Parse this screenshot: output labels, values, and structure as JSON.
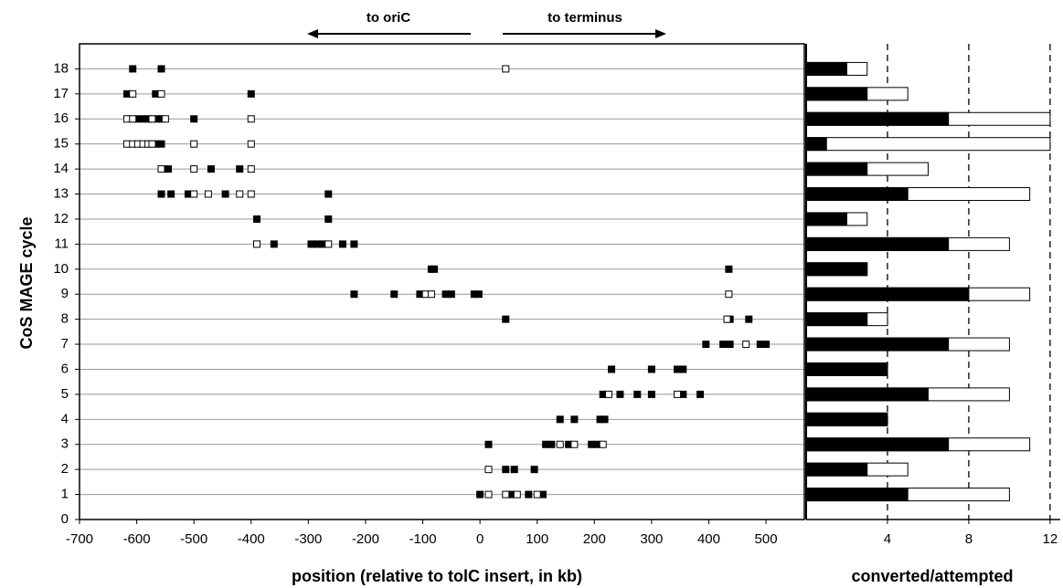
{
  "chart_data": [
    {
      "type": "scatter",
      "ylabel": "CoS MAGE cycle",
      "xlabel": "position (relative to tolC insert, in kb)",
      "annotations": [
        "to oriC",
        "to terminus"
      ],
      "xlim": [
        -700,
        567
      ],
      "xticks": [
        -700,
        -600,
        -500,
        -400,
        -300,
        -200,
        -100,
        0,
        100,
        200,
        300,
        400,
        500
      ],
      "ylim": [
        0,
        19
      ],
      "yticks": [
        0,
        1,
        2,
        3,
        4,
        5,
        6,
        7,
        8,
        9,
        10,
        11,
        12,
        13,
        14,
        15,
        16,
        17,
        18
      ],
      "grid": true,
      "series": [
        {
          "color": "#000000",
          "x": [
            -607,
            -557,
            -617,
            -567,
            -400,
            -598,
            -589,
            -580,
            -565,
            -557,
            -500,
            -565,
            -557,
            -545,
            -470,
            -420,
            -557,
            -540,
            -510,
            -445,
            -265,
            -390,
            -265,
            -360,
            -295,
            -285,
            -275,
            -240,
            -220,
            -85,
            -80,
            435,
            -220,
            -150,
            -105,
            -60,
            -50,
            -10,
            -2,
            45,
            437,
            470,
            395,
            425,
            437,
            490,
            500,
            230,
            300,
            345,
            355,
            215,
            245,
            275,
            300,
            355,
            385,
            140,
            165,
            210,
            218,
            15,
            115,
            125,
            155,
            195,
            205,
            45,
            60,
            95,
            0,
            55,
            85,
            110
          ],
          "values": [
            18,
            18,
            17,
            17,
            17,
            16,
            16,
            16,
            16,
            16,
            16,
            15,
            15,
            14,
            14,
            14,
            13,
            13,
            13,
            13,
            13,
            12,
            12,
            11,
            11,
            11,
            11,
            11,
            11,
            10,
            10,
            10,
            9,
            9,
            9,
            9,
            9,
            9,
            9,
            8,
            8,
            8,
            7,
            7,
            7,
            7,
            7,
            6,
            6,
            6,
            6,
            5,
            5,
            5,
            5,
            5,
            5,
            4,
            4,
            4,
            4,
            3,
            3,
            3,
            3,
            3,
            3,
            2,
            2,
            2,
            1,
            1,
            1,
            1
          ]
        },
        {
          "color": "#ffffff",
          "x": [
            45,
            -607,
            -557,
            -617,
            -607,
            -573,
            -550,
            -400,
            -617,
            -607,
            -598,
            -589,
            -580,
            -573,
            -500,
            -400,
            -557,
            -500,
            -400,
            -500,
            -475,
            -420,
            -400,
            -390,
            -265,
            -95,
            -85,
            435,
            432,
            465,
            225,
            345,
            140,
            165,
            215,
            15,
            15,
            45,
            65,
            100
          ],
          "values": [
            18,
            17,
            17,
            16,
            16,
            16,
            16,
            16,
            15,
            15,
            15,
            15,
            15,
            15,
            15,
            15,
            14,
            14,
            14,
            13,
            13,
            13,
            13,
            11,
            11,
            9,
            9,
            9,
            8,
            7,
            5,
            5,
            3,
            3,
            3,
            2,
            1,
            1,
            1,
            1
          ]
        }
      ]
    },
    {
      "type": "bar",
      "xlabel": "converted/attempted",
      "xlim": [
        0,
        12.5
      ],
      "xticks": [
        4,
        8,
        12
      ],
      "series": [
        {
          "color": "#ffffff",
          "values": [
            10,
            5,
            11,
            4,
            10,
            4,
            10,
            4,
            11,
            3,
            10,
            3,
            11,
            6,
            12,
            12,
            5,
            3
          ]
        },
        {
          "color": "#000000",
          "values": [
            5,
            3,
            7,
            4,
            6,
            4,
            7,
            3,
            8,
            3,
            7,
            2,
            5,
            3,
            1,
            7,
            3,
            2
          ]
        }
      ]
    }
  ]
}
